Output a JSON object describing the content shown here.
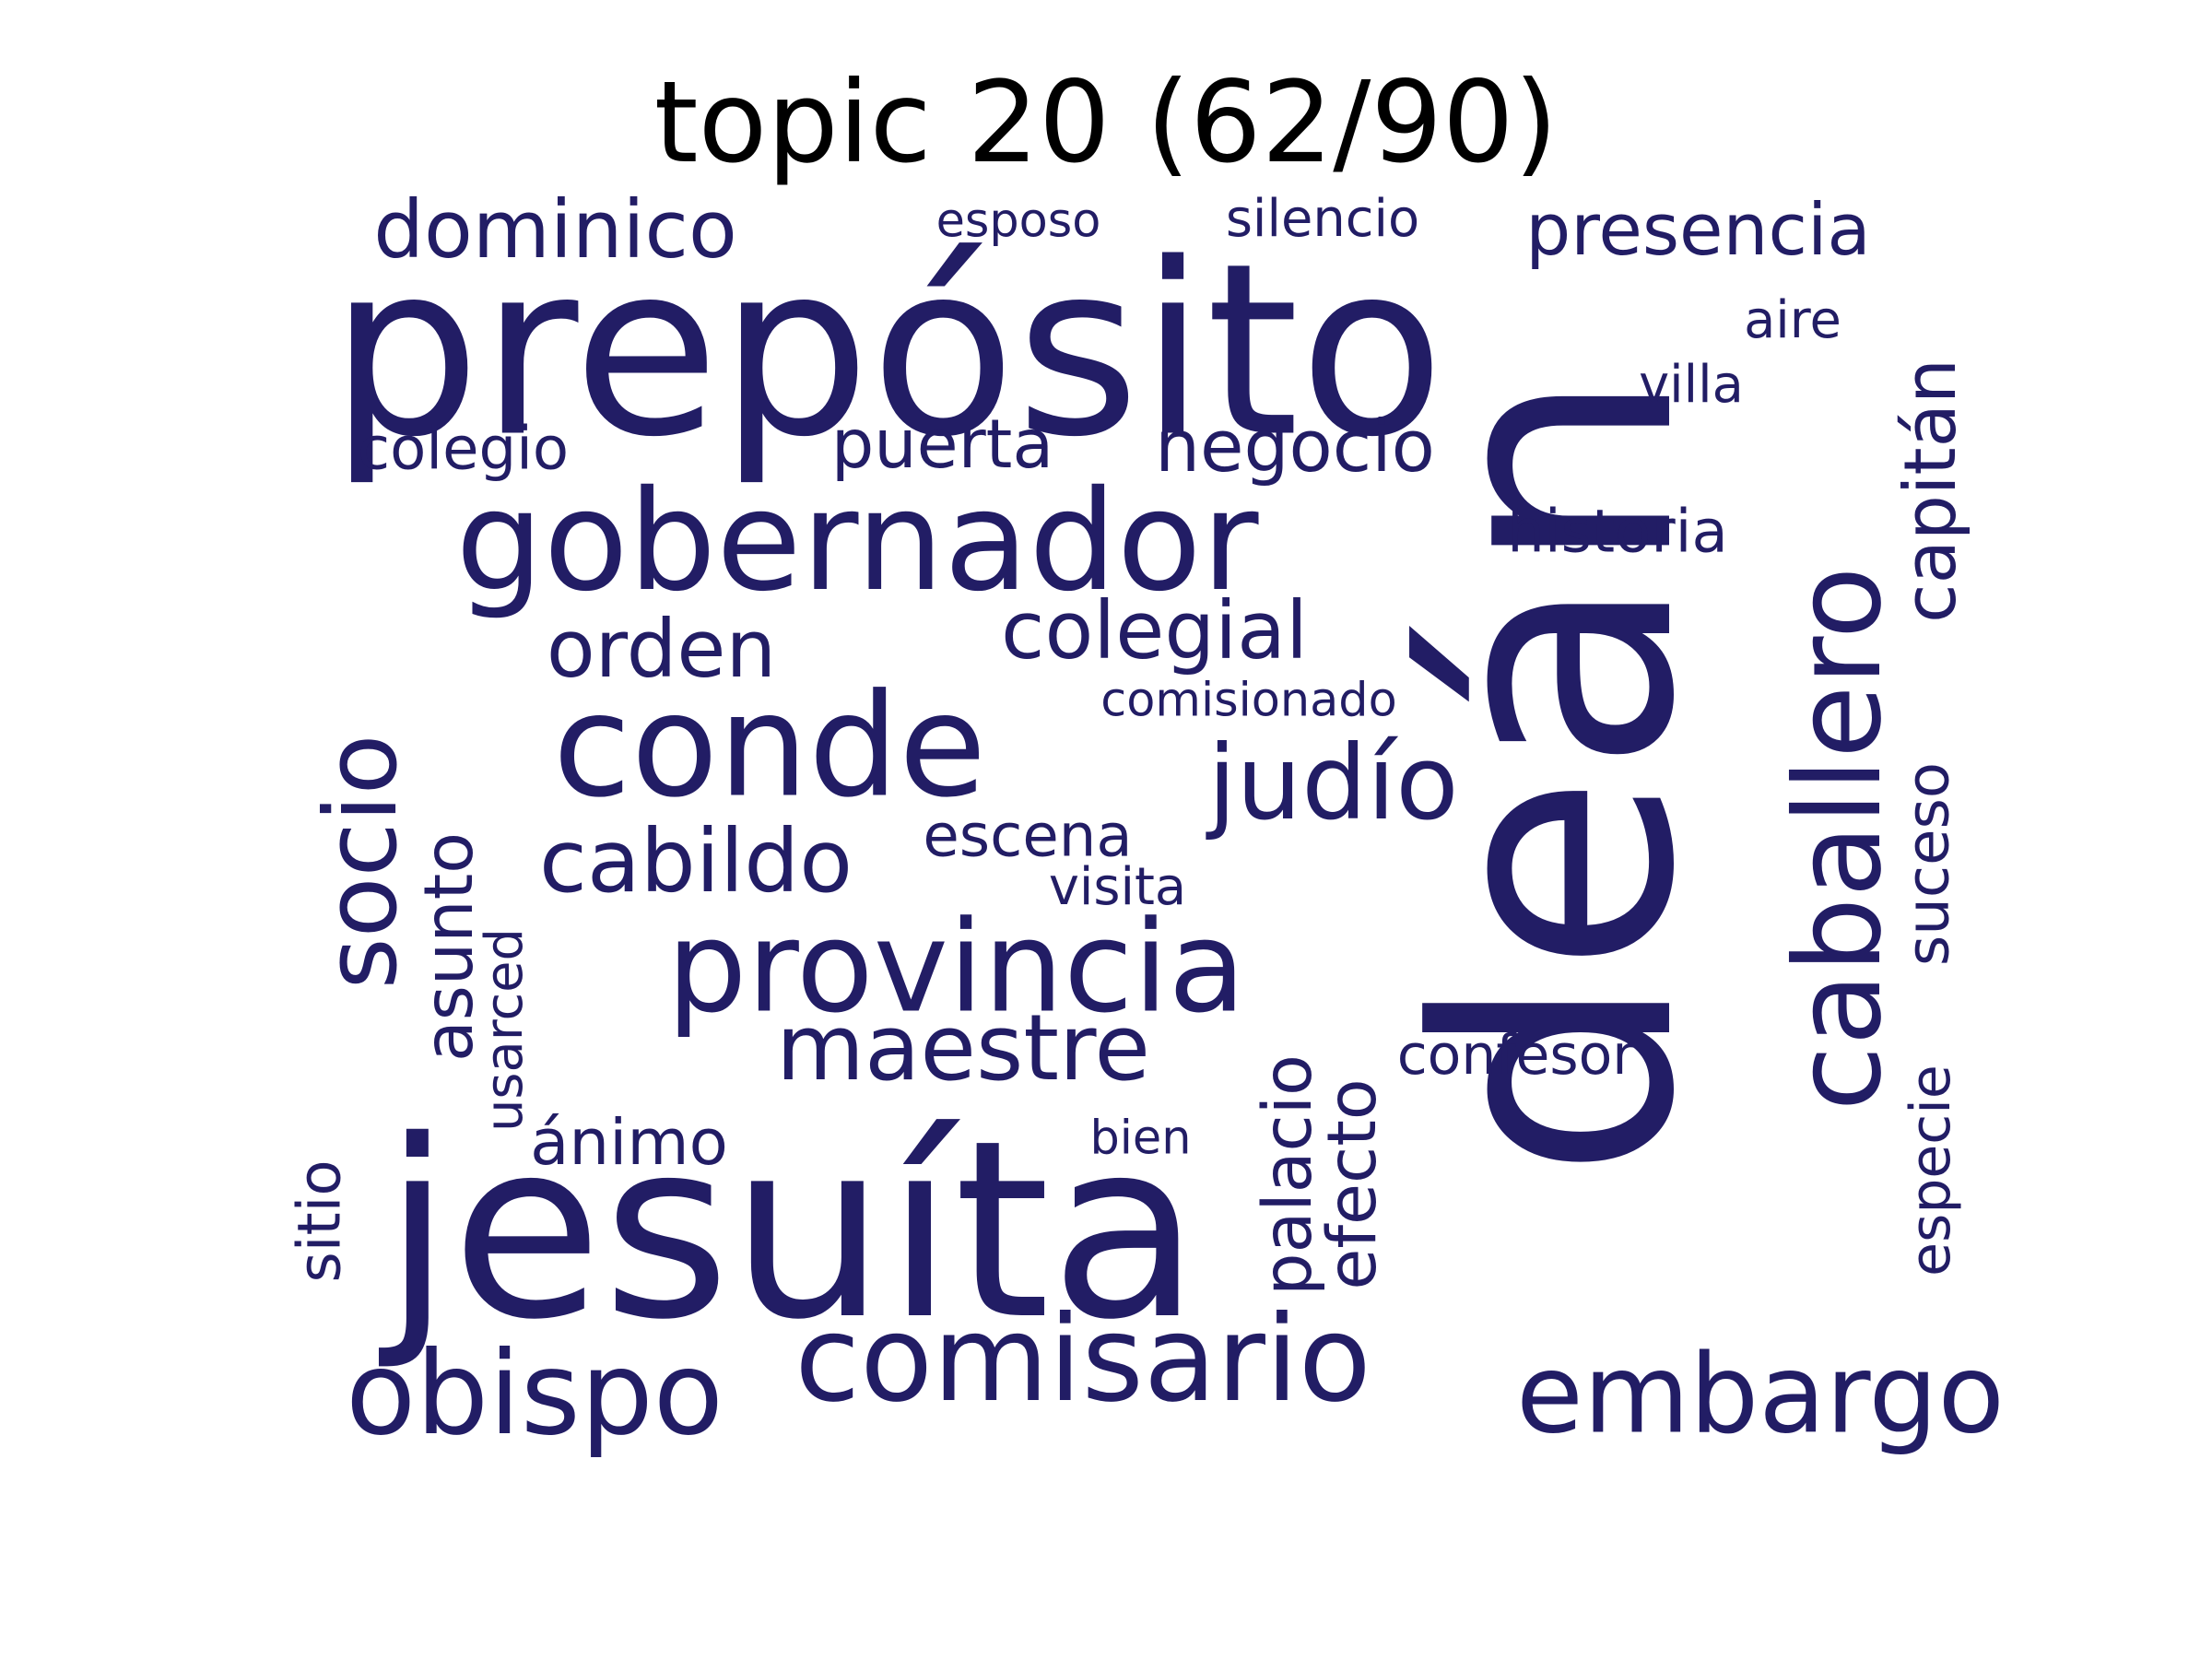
{
  "title": "topic 20 (62/90)",
  "text_color": "#221d65",
  "background_color": "#ffffff",
  "words": [
    {
      "id": "dean",
      "text": "deán",
      "orientation": "vertical"
    },
    {
      "id": "preposito",
      "text": "prepósito",
      "orientation": "horizontal"
    },
    {
      "id": "jesuita",
      "text": "jesuíta",
      "orientation": "horizontal"
    },
    {
      "id": "conde",
      "text": "conde",
      "orientation": "horizontal"
    },
    {
      "id": "caballero",
      "text": "caballero",
      "orientation": "vertical"
    },
    {
      "id": "provincia",
      "text": "provincia",
      "orientation": "horizontal"
    },
    {
      "id": "gobernador",
      "text": "gobernador",
      "orientation": "horizontal"
    },
    {
      "id": "comisario",
      "text": "comisario",
      "orientation": "horizontal"
    },
    {
      "id": "socio",
      "text": "socio",
      "orientation": "vertical"
    },
    {
      "id": "maestre",
      "text": "maestre",
      "orientation": "horizontal"
    },
    {
      "id": "embargo",
      "text": "embargo",
      "orientation": "horizontal"
    },
    {
      "id": "judio",
      "text": "judío",
      "orientation": "horizontal"
    },
    {
      "id": "obispo",
      "text": "obispo",
      "orientation": "horizontal"
    },
    {
      "id": "dominico",
      "text": "dominico",
      "orientation": "horizontal"
    },
    {
      "id": "presencia",
      "text": "presencia",
      "orientation": "horizontal"
    },
    {
      "id": "cabildo",
      "text": "cabildo",
      "orientation": "horizontal"
    },
    {
      "id": "colegial",
      "text": "colegial",
      "orientation": "horizontal"
    },
    {
      "id": "orden",
      "text": "orden",
      "orientation": "horizontal"
    },
    {
      "id": "capitan",
      "text": "capitán",
      "orientation": "vertical"
    },
    {
      "id": "negocio",
      "text": "negocio",
      "orientation": "horizontal"
    },
    {
      "id": "puerta",
      "text": "puerta",
      "orientation": "horizontal"
    },
    {
      "id": "colegio",
      "text": "colegio",
      "orientation": "horizontal"
    },
    {
      "id": "historia",
      "text": "historia",
      "orientation": "horizontal"
    },
    {
      "id": "asunto",
      "text": "asunto",
      "orientation": "vertical"
    },
    {
      "id": "suceso",
      "text": "suceso",
      "orientation": "vertical"
    },
    {
      "id": "especie",
      "text": "especie",
      "orientation": "vertical"
    },
    {
      "id": "palacio",
      "text": "palacio",
      "orientation": "vertical"
    },
    {
      "id": "efecto",
      "text": "efecto",
      "orientation": "vertical"
    },
    {
      "id": "escena",
      "text": "escena",
      "orientation": "horizontal"
    },
    {
      "id": "animo",
      "text": "ánimo",
      "orientation": "horizontal"
    },
    {
      "id": "sitio",
      "text": "sitio",
      "orientation": "vertical"
    },
    {
      "id": "confesor",
      "text": "confesor",
      "orientation": "horizontal"
    },
    {
      "id": "silencio",
      "text": "silencio",
      "orientation": "horizontal"
    },
    {
      "id": "visita",
      "text": "visita",
      "orientation": "horizontal"
    },
    {
      "id": "villa",
      "text": "villa",
      "orientation": "horizontal"
    },
    {
      "id": "usarced",
      "text": "usarced",
      "orientation": "vertical"
    },
    {
      "id": "esposo",
      "text": "esposo",
      "orientation": "horizontal"
    },
    {
      "id": "comisionado",
      "text": "comisionado",
      "orientation": "horizontal"
    },
    {
      "id": "aire",
      "text": "aire",
      "orientation": "horizontal"
    },
    {
      "id": "bien",
      "text": "bien",
      "orientation": "horizontal"
    }
  ]
}
